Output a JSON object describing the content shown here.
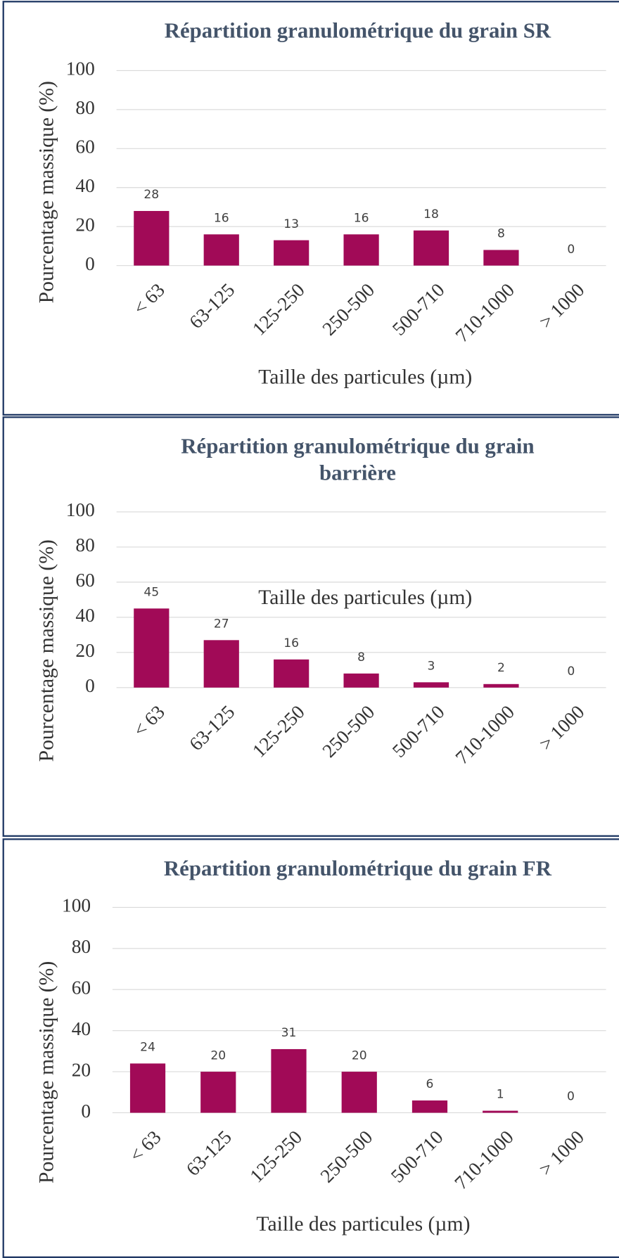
{
  "chart_data": [
    {
      "type": "bar",
      "title": "Répartition granulométrique du grain SR",
      "xlabel": "Taille des particules (µm)",
      "ylabel": "Pourcentage massique (%)",
      "categories": [
        "< 63",
        "63-125",
        "125-250",
        "250-500",
        "500-710",
        "710-1000",
        "> 1000"
      ],
      "values": [
        28,
        16,
        13,
        16,
        18,
        8,
        0
      ],
      "color": "#a10a57",
      "ylim": [
        0,
        100
      ],
      "yticks": [
        0,
        20,
        40,
        60,
        80,
        100
      ],
      "grid": true
    },
    {
      "type": "bar",
      "title": "Répartition granulométrique du grain barrière",
      "xlabel": "Taille des particules (µm)",
      "ylabel": "Pourcentage massique (%)",
      "categories": [
        "< 63",
        "63-125",
        "125-250",
        "250-500",
        "500-710",
        "710-1000",
        "> 1000"
      ],
      "values": [
        45,
        27,
        16,
        8,
        3,
        2,
        0
      ],
      "color": "#a10a57",
      "ylim": [
        0,
        100
      ],
      "yticks": [
        0,
        20,
        40,
        60,
        80,
        100
      ],
      "grid": true
    },
    {
      "type": "bar",
      "title": "Répartition granulométrique du grain FR",
      "xlabel": "Taille des particules (µm)",
      "ylabel": "Pourcentage massique (%)",
      "categories": [
        "< 63",
        "63-125",
        "125-250",
        "250-500",
        "500-710",
        "710-1000",
        "> 1000"
      ],
      "values": [
        24,
        20,
        31,
        20,
        6,
        1,
        0
      ],
      "color": "#a10a57",
      "ylim": [
        0,
        100
      ],
      "yticks": [
        0,
        20,
        40,
        60,
        80,
        100
      ],
      "grid": true
    }
  ]
}
